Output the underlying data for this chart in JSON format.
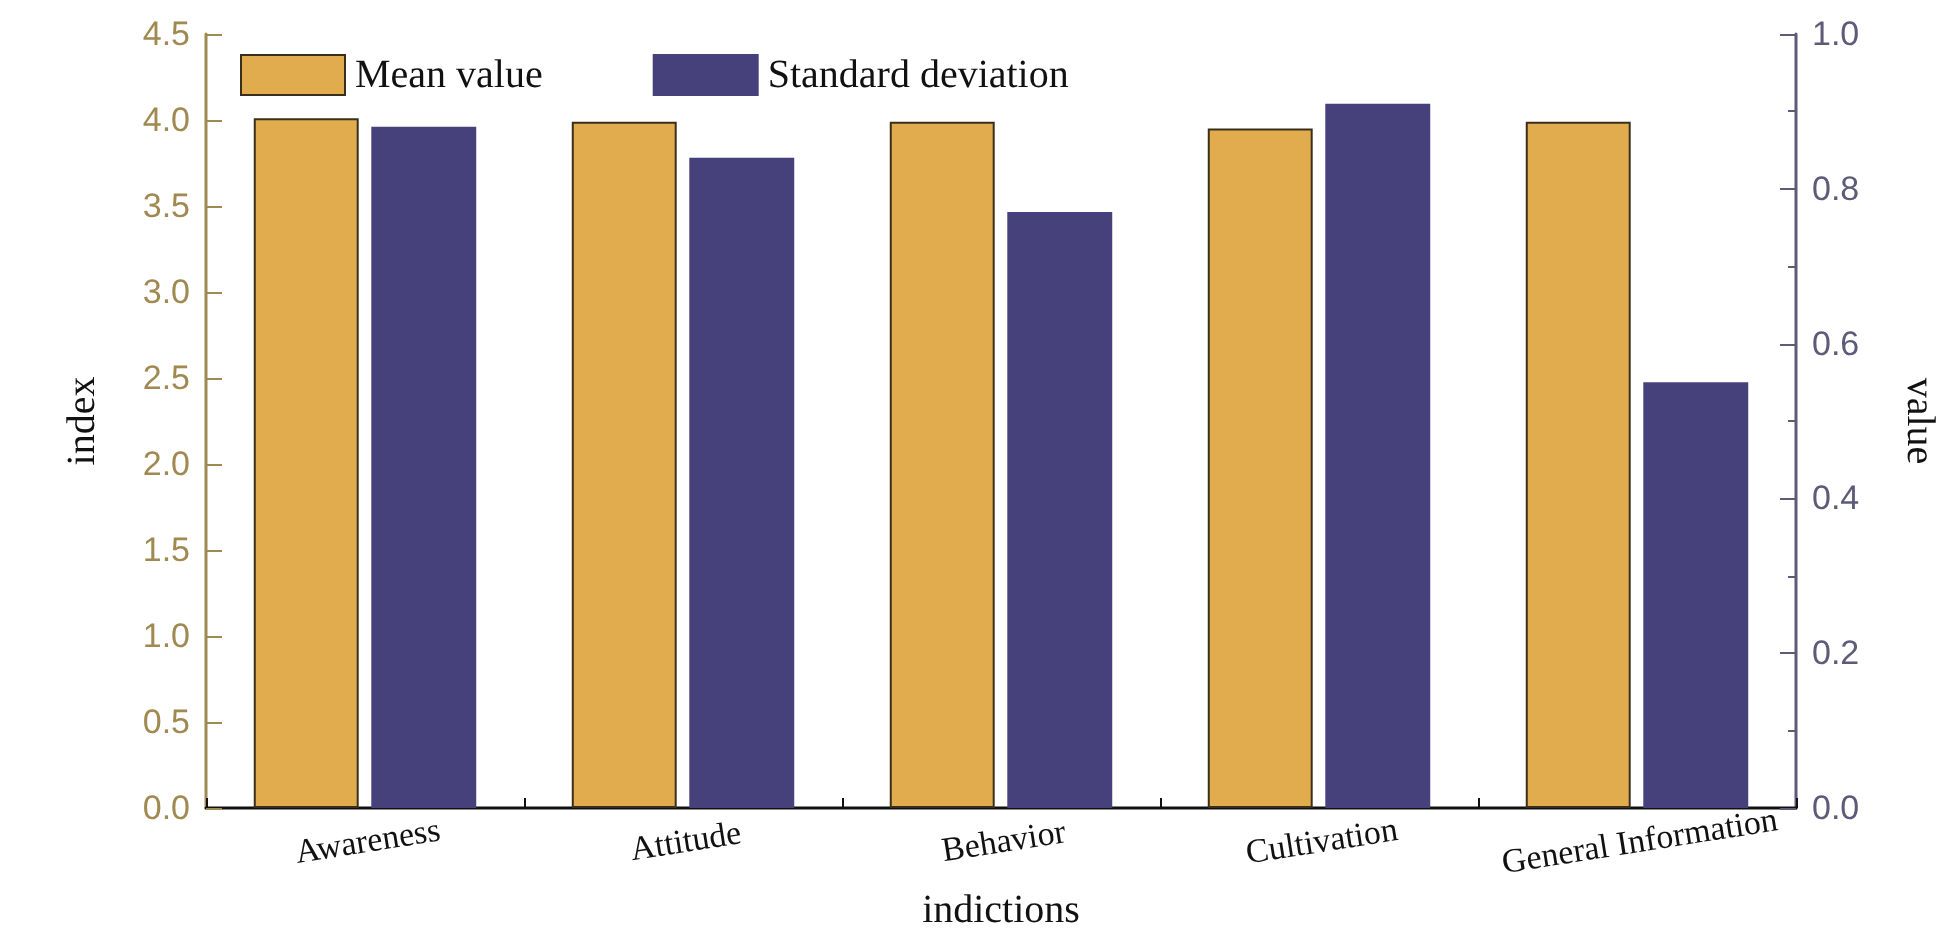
{
  "chart_data": {
    "type": "bar",
    "xlabel": "indictions",
    "ylabel": "index",
    "y2label": "value",
    "categories": [
      "Awareness",
      "Attitude",
      "Behavior",
      "Cultivation",
      "General Information"
    ],
    "series": [
      {
        "name": "Mean value",
        "color": "#e0ac4e",
        "values": [
          4.01,
          3.99,
          3.99,
          3.95,
          3.99
        ]
      },
      {
        "name": "Standard deviation",
        "color": "#46417a",
        "axis": "y2",
        "values": [
          0.88,
          0.84,
          0.77,
          0.91,
          0.55
        ]
      }
    ],
    "ylim": [
      0,
      4.5
    ],
    "yticks": [
      {
        "value": 0,
        "label": "0.0"
      },
      0.5,
      {
        "value": 1,
        "label": "1.0"
      },
      1.5,
      {
        "value": 2,
        "label": "2.0"
      },
      2.5,
      {
        "value": 3,
        "label": "3.0"
      },
      3.5,
      {
        "value": 4,
        "label": "4.0"
      },
      4.5
    ],
    "y2lim": [
      0,
      1
    ],
    "y2ticks": [
      {
        "value": 0,
        "label": "0.0"
      },
      0.2,
      0.4,
      0.6,
      0.8,
      {
        "value": 1,
        "label": "1.0"
      }
    ],
    "grid": false,
    "legend": "top left"
  }
}
